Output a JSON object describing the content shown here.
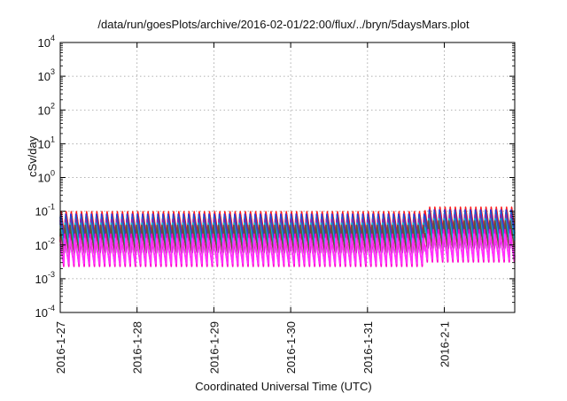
{
  "chart_data": {
    "type": "line",
    "title": "/data/run/goesPlots/archive/2016-02-01/22:00/flux/../bryn/5daysMars.plot",
    "xlabel": "Coordinated Universal Time (UTC)",
    "ylabel": "cSv/day",
    "yscale": "log",
    "ylim": [
      0.0001,
      10000
    ],
    "xlim": [
      "2016-01-27",
      "2016-02-01 22:00"
    ],
    "grid": true,
    "x_ticks": [
      "2016-1-27",
      "2016-1-28",
      "2016-1-29",
      "2016-1-30",
      "2016-1-31",
      "2016-2-1"
    ],
    "y_ticks": [
      {
        "base": "10",
        "exp": "-4"
      },
      {
        "base": "10",
        "exp": "-3"
      },
      {
        "base": "10",
        "exp": "-2"
      },
      {
        "base": "10",
        "exp": "-1"
      },
      {
        "base": "10",
        "exp": "0"
      },
      {
        "base": "10",
        "exp": "1"
      },
      {
        "base": "10",
        "exp": "2"
      },
      {
        "base": "10",
        "exp": "3"
      },
      {
        "base": "10",
        "exp": "4"
      }
    ],
    "pattern": {
      "period_hours": 1.6,
      "note_sawtooth": true,
      "start": "2016-01-27",
      "end": "2016-02-01 22:00"
    },
    "series": [
      {
        "color": "#ff1a1a",
        "peak": 0.1,
        "trough": 0.012
      },
      {
        "color": "#2e7d32",
        "peak": 0.08,
        "trough": 0.009
      },
      {
        "color": "#3a2fd8",
        "peak": 0.085,
        "trough": 0.011
      },
      {
        "color": "#1565c0",
        "peak": 0.07,
        "trough": 0.0085
      },
      {
        "color": "#8e24aa",
        "peak": 0.06,
        "trough": 0.006
      },
      {
        "color": "#00bcd4",
        "peak": 0.045,
        "trough": 0.009
      },
      {
        "color": "#6d4c41",
        "peak": 0.04,
        "trough": 0.005
      },
      {
        "color": "#ff00cc",
        "peak": 0.022,
        "trough": 0.0022
      },
      {
        "color": "#ff33ff",
        "peak": 0.016,
        "trough": 0.0028
      }
    ],
    "late_period_boost": {
      "start": "2016-01-31 18:00",
      "factor": 1.35
    }
  }
}
